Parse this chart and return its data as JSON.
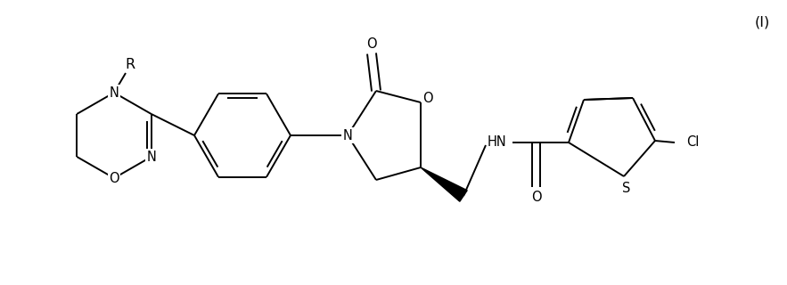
{
  "bg_color": "#ffffff",
  "line_color": "#000000",
  "lw": 1.4,
  "fs": 10.5,
  "fig_width": 8.83,
  "fig_height": 3.2,
  "dpi": 100,
  "xlim": [
    0,
    8.83
  ],
  "ylim": [
    0,
    3.2
  ],
  "label_I": "(I)",
  "label_R": "R",
  "label_N1": "N",
  "label_N2": "N",
  "label_O": "O",
  "label_N_oxaz": "N",
  "label_O_oxaz": "O",
  "label_O_carbonyl1": "O",
  "label_HN": "HN",
  "label_O_amide": "O",
  "label_S": "S",
  "label_Cl": "Cl"
}
